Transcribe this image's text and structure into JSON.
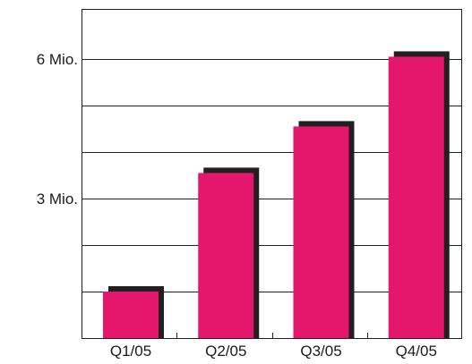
{
  "chart_data": {
    "type": "bar",
    "title": "",
    "xlabel": "",
    "ylabel": "",
    "categories": [
      "Q1/05",
      "Q2/05",
      "Q3/05",
      "Q4/05"
    ],
    "values": [
      1000000,
      3550000,
      4550000,
      6050000
    ],
    "ylim": [
      0,
      6000000
    ],
    "y_ticks": [
      {
        "value": 3000000,
        "label": "3 Mio."
      },
      {
        "value": 6000000,
        "label": "6 Mio."
      }
    ],
    "gridline_step": 1000000,
    "grid": true,
    "bar_style": "3d-shadow",
    "colors": {
      "bar": "#e4176c",
      "shadow": "#231f20",
      "grid": "#231f20",
      "text": "#1a1a1a"
    }
  }
}
